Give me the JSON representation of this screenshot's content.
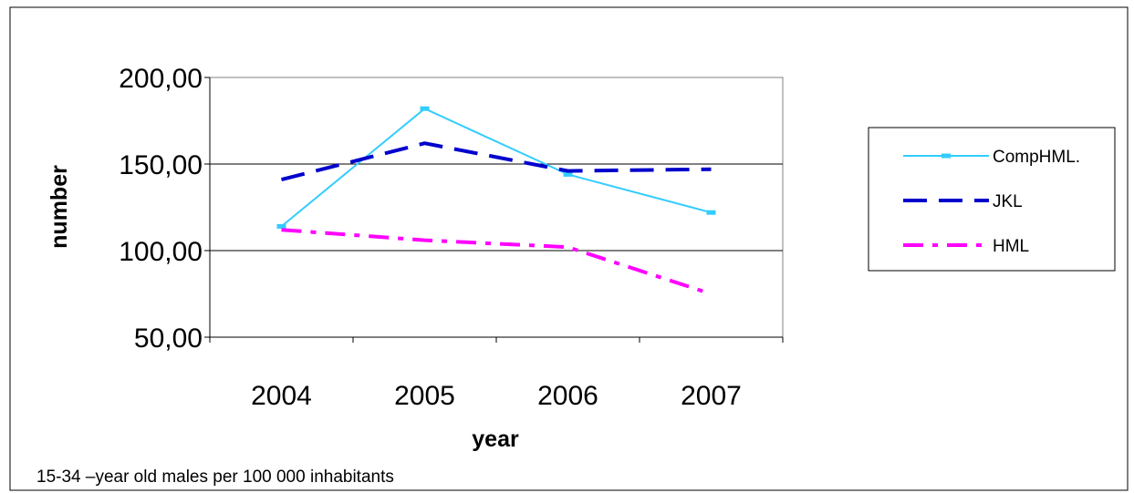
{
  "chart_data": {
    "type": "line",
    "xlabel": "year",
    "ylabel": "number",
    "categories": [
      "2004",
      "2005",
      "2006",
      "2007"
    ],
    "ylim": [
      50,
      200
    ],
    "ytick_values": [
      50,
      100,
      150,
      200
    ],
    "ytick_labels": [
      "50,00",
      "100,00",
      "150,00",
      "200,00"
    ],
    "grid": true,
    "legend_position": "right",
    "series": [
      {
        "name": "CompHML.",
        "values": [
          114,
          182,
          144,
          122
        ],
        "color": "#33ccff",
        "style": "solid",
        "marker": "square"
      },
      {
        "name": "JKL",
        "values": [
          141,
          162,
          146,
          147
        ],
        "color": "#0000cc",
        "style": "dashed",
        "marker": "none"
      },
      {
        "name": "HML",
        "values": [
          112,
          106,
          102,
          75
        ],
        "color": "#ff00ff",
        "style": "dash-dot",
        "marker": "none"
      }
    ],
    "note": "15-34 –year old males per 100 000 inhabitants"
  }
}
